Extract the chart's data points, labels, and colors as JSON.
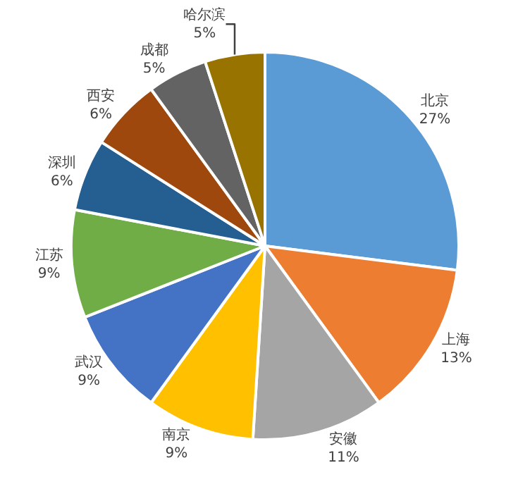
{
  "chart_data": {
    "type": "pie",
    "categories": [
      "北京",
      "上海",
      "安徽",
      "南京",
      "武汉",
      "江苏",
      "深圳",
      "西安",
      "成都",
      "哈尔滨"
    ],
    "values": [
      27,
      13,
      11,
      9,
      9,
      9,
      6,
      6,
      5,
      5
    ],
    "value_labels": [
      "27%",
      "13%",
      "11%",
      "9%",
      "9%",
      "9%",
      "6%",
      "6%",
      "5%",
      "5%"
    ],
    "colors": [
      "#5b9bd5",
      "#ed7d31",
      "#a5a5a5",
      "#ffc000",
      "#4472c4",
      "#70ad47",
      "#255e91",
      "#9e480e",
      "#636363",
      "#997300"
    ],
    "legend": false
  }
}
